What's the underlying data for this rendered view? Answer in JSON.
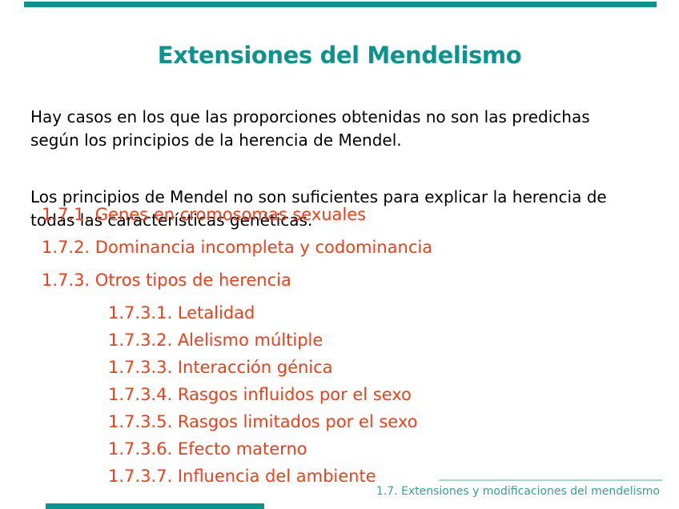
{
  "slide": {
    "title": "Extensiones del Mendelismo",
    "paragraphs": [
      "Hay casos en los que las proporciones obtenidas no son las predichas\nsegún los principios de la herencia de Mendel.",
      "Los principios de Mendel no son suficientes para explicar la herencia de\ntodas las características genéticas."
    ],
    "toc_items": [
      {
        "label": "1.7.1. Genes en cromosomas sexuales",
        "level": 1
      },
      {
        "label": "1.7.2. Dominancia incompleta y codominancia",
        "level": 1
      },
      {
        "label": "1.7.3. Otros tipos de herencia",
        "level": 1
      },
      {
        "label": "1.7.3.1. Letalidad",
        "level": 2
      },
      {
        "label": "1.7.3.2. Alelismo múltiple",
        "level": 2
      },
      {
        "label": "1.7.3.3. Interacción génica",
        "level": 2
      },
      {
        "label": "1.7.3.4. Rasgos influidos por el sexo",
        "level": 2
      },
      {
        "label": "1.7.3.5. Rasgos limitados por el sexo",
        "level": 2
      },
      {
        "label": "1.7.3.6. Efecto materno",
        "level": 2
      },
      {
        "label": "1.7.3.7. Influencia del ambiente",
        "level": 2
      }
    ],
    "footer": "1.7. Extensiones y modificaciones del mendelismo",
    "colors": {
      "accent_teal": "#0b948e",
      "list_red": "#f03f1a",
      "footer_teal": "#3aa08d",
      "divider_teal": "#a4d7d0",
      "body_text": "#000000",
      "background": "#ffffff"
    }
  }
}
